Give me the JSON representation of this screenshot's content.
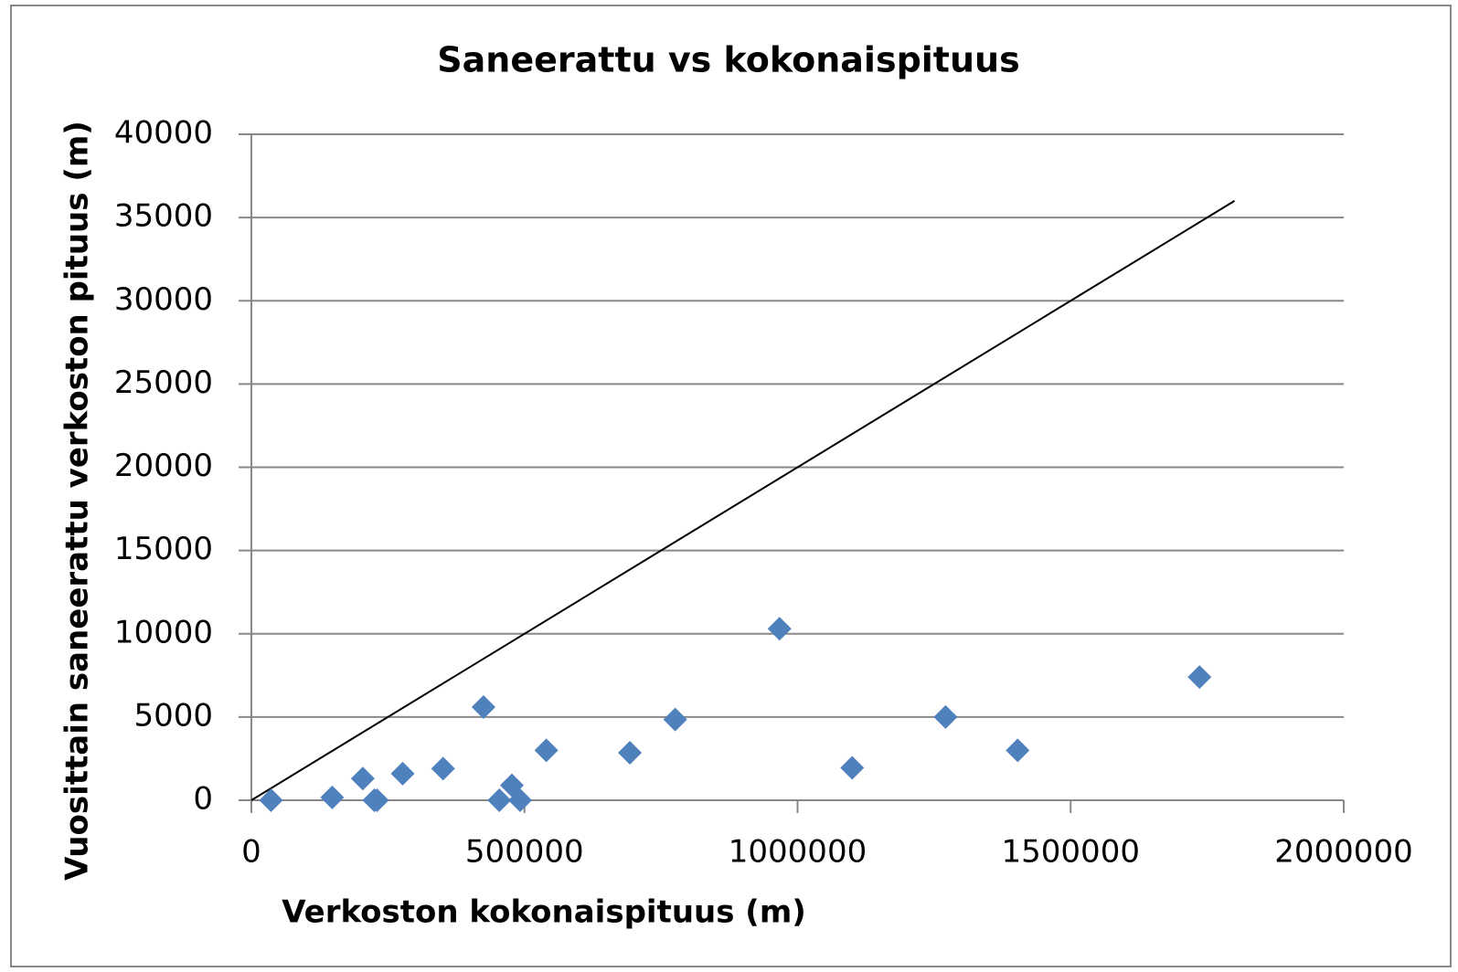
{
  "chart_data": {
    "type": "scatter",
    "title": "Saneerattu vs kokonaispituus",
    "xlabel": "Verkoston kokonaispituus (m)",
    "ylabel": "Vuosittain saneerattu verkoston pituus (m)",
    "x": [
      36000,
      148000,
      204000,
      225000,
      230000,
      277000,
      351000,
      425000,
      454000,
      477000,
      492000,
      540000,
      693000,
      776000,
      967000,
      1100000,
      1271000,
      1403000,
      1736000
    ],
    "values": [
      0,
      170,
      1300,
      0,
      0,
      1600,
      1900,
      5600,
      0,
      900,
      0,
      3000,
      2850,
      4850,
      10300,
      1950,
      5000,
      3000,
      7400
    ],
    "color": "#4f81bd",
    "trendline": {
      "x": [
        0,
        1800000
      ],
      "y": [
        0,
        36000
      ],
      "color": "#000000"
    },
    "xlim": [
      0,
      2000000
    ],
    "xticks": [
      0,
      500000,
      1000000,
      1500000,
      2000000
    ],
    "ylim": [
      0,
      40000
    ],
    "yticks": [
      0,
      5000,
      10000,
      15000,
      20000,
      25000,
      30000,
      35000,
      40000
    ],
    "grid": true
  }
}
